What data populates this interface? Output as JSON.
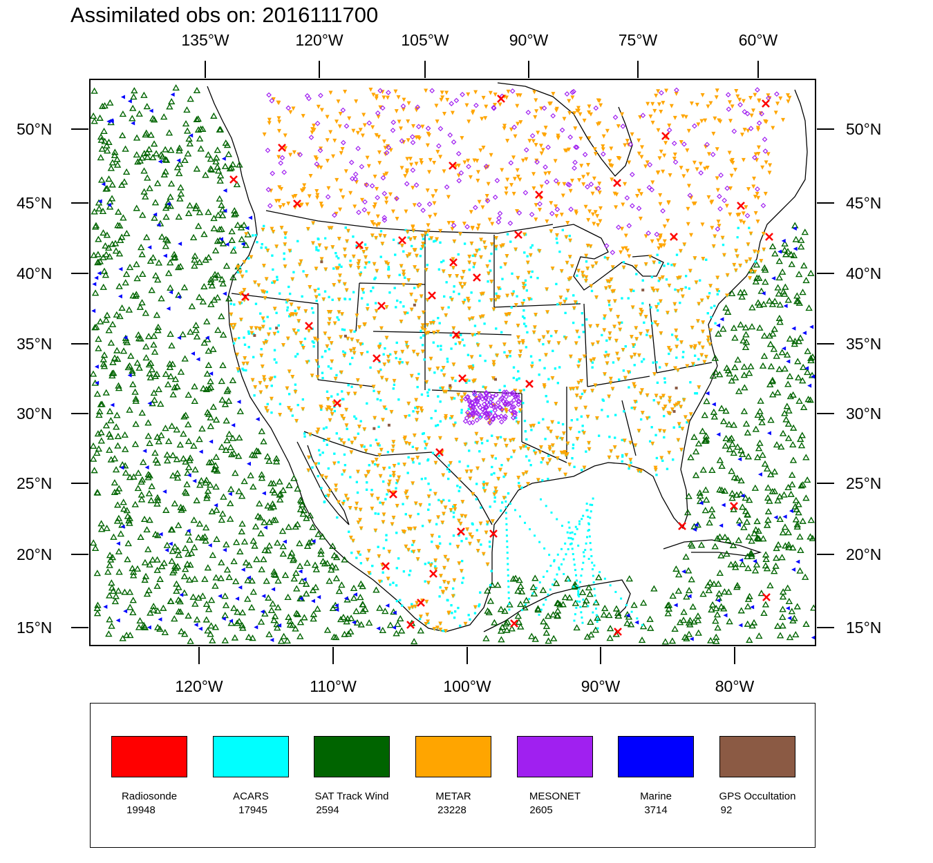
{
  "title": "Assimilated obs on: 2016111700",
  "map": {
    "top_axis_labels": [
      "135°W",
      "120°W",
      "105°W",
      "90°W",
      "75°W",
      "60°W"
    ],
    "bottom_axis_labels": [
      "120°W",
      "110°W",
      "100°W",
      "90°W",
      "80°W"
    ],
    "left_axis_labels": [
      "50°N",
      "45°N",
      "40°N",
      "35°N",
      "30°N",
      "25°N",
      "20°N",
      "15°N"
    ],
    "right_axis_labels": [
      "50°N",
      "45°N",
      "40°N",
      "35°N",
      "30°N",
      "25°N",
      "20°N",
      "15°N"
    ],
    "lon_range": [
      -128,
      -74
    ],
    "lat_range": [
      14,
      52.5
    ]
  },
  "legend": [
    {
      "name": "Radiosonde",
      "count": "19948",
      "color": "#ff0000",
      "marker": "x-mark",
      "area": "land"
    },
    {
      "name": "ACARS",
      "count": "17945",
      "color": "#00ffff",
      "marker": "dot",
      "area": "land"
    },
    {
      "name": "SAT Track Wind",
      "count": "2594",
      "color": "#006400",
      "marker": "triangle-up",
      "area": "ocean"
    },
    {
      "name": "METAR",
      "count": "23228",
      "color": "#ffa500",
      "marker": "triangle-down",
      "area": "land"
    },
    {
      "name": "MESONET",
      "count": "2605",
      "color": "#a020f0",
      "marker": "diamond",
      "area": "north"
    },
    {
      "name": "Marine",
      "count": "3714",
      "color": "#0000ff",
      "marker": "triangle-left",
      "area": "coast"
    },
    {
      "name": "GPS Occultation",
      "count": "92",
      "color": "#8b5a44",
      "marker": "square",
      "area": "land"
    }
  ],
  "colors": {
    "background": "#ffffff",
    "coastline": "#000000"
  }
}
